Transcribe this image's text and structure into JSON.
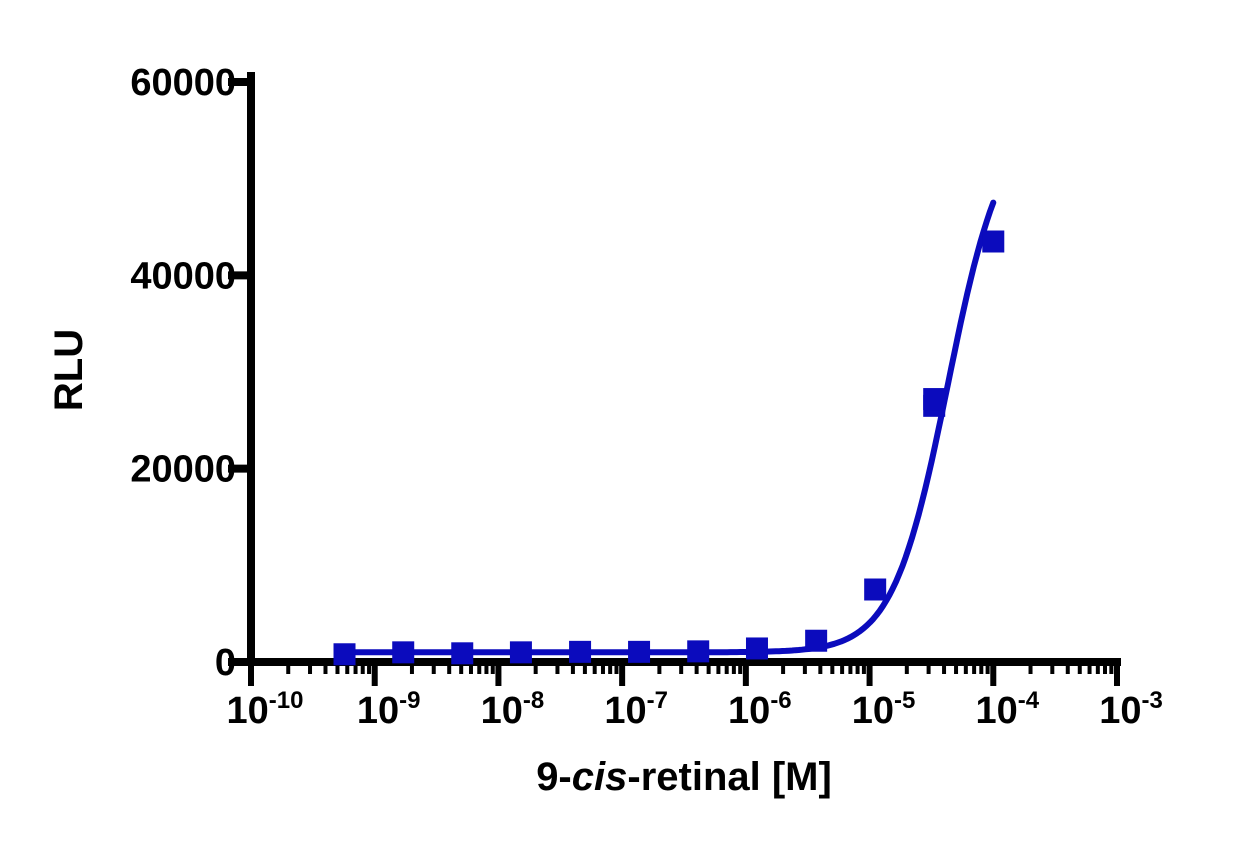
{
  "chart_data": {
    "type": "scatter",
    "title": "",
    "xlabel": {
      "prefix": "9-",
      "italic": "cis",
      "suffix": "-retinal [M]"
    },
    "ylabel": "RLU",
    "xscale": "log",
    "xlim": [
      1e-10,
      0.001
    ],
    "ylim": [
      0,
      60000
    ],
    "yticks": [
      {
        "value": 0,
        "label": "0"
      },
      {
        "value": 20000,
        "label": "20000"
      },
      {
        "value": 40000,
        "label": "40000"
      },
      {
        "value": 60000,
        "label": "60000"
      }
    ],
    "xticks": [
      {
        "value": 1e-10,
        "base": "10",
        "exp": "-10"
      },
      {
        "value": 1e-09,
        "base": "10",
        "exp": "-9"
      },
      {
        "value": 1e-08,
        "base": "10",
        "exp": "-8"
      },
      {
        "value": 1e-07,
        "base": "10",
        "exp": "-7"
      },
      {
        "value": 1e-06,
        "base": "10",
        "exp": "-6"
      },
      {
        "value": 1e-05,
        "base": "10",
        "exp": "-5"
      },
      {
        "value": 0.0001,
        "base": "10",
        "exp": "-4"
      },
      {
        "value": 0.001,
        "base": "10",
        "exp": "-3"
      }
    ],
    "grid": false,
    "legend": "none",
    "color": "#0b0bbd",
    "marker": "square",
    "series": [
      {
        "points": [
          {
            "x": 5.7e-10,
            "y": 800
          },
          {
            "x": 1.7e-09,
            "y": 1000
          },
          {
            "x": 5.1e-09,
            "y": 900
          },
          {
            "x": 1.52e-08,
            "y": 1000
          },
          {
            "x": 4.57e-08,
            "y": 1050
          },
          {
            "x": 1.37e-07,
            "y": 1050
          },
          {
            "x": 4.12e-07,
            "y": 1100
          },
          {
            "x": 1.23e-06,
            "y": 1400
          },
          {
            "x": 3.7e-06,
            "y": 2200
          },
          {
            "x": 1.11e-05,
            "y": 7500
          },
          {
            "x": 3.33e-05,
            "y": 26500
          },
          {
            "x": 3.33e-05,
            "y": 27200
          },
          {
            "x": 0.0001,
            "y": 43500
          }
        ],
        "fit": {
          "model": "sigmoidal dose-response",
          "bottom": 1000,
          "top": 56500,
          "ec50": 4.3e-05,
          "hill": 1.95
        }
      }
    ]
  }
}
